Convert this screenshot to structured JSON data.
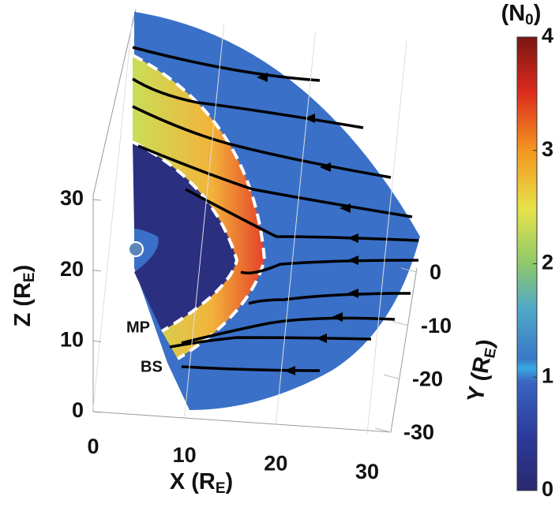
{
  "chart_data": {
    "type": "pcolor3d",
    "xlabel": [
      "X (R",
      "E",
      ")"
    ],
    "ylabel": [
      "Y (R",
      "E",
      ")"
    ],
    "zlabel": [
      "Z (R",
      "E",
      ")"
    ],
    "xlim": [
      0,
      30
    ],
    "xticks": [
      0,
      10,
      20,
      30
    ],
    "ylim": [
      -30,
      0
    ],
    "yticks": [
      0,
      -10,
      -20,
      -30
    ],
    "zlim": [
      0,
      30
    ],
    "zticks": [
      0,
      10,
      20,
      30
    ],
    "colorbar": {
      "label": [
        "(N",
        "0",
        ")"
      ],
      "lim": [
        0,
        4
      ],
      "ticks": [
        0,
        1,
        2,
        3,
        4
      ]
    },
    "annotations": [
      "MP",
      "BS"
    ],
    "grid": true
  }
}
